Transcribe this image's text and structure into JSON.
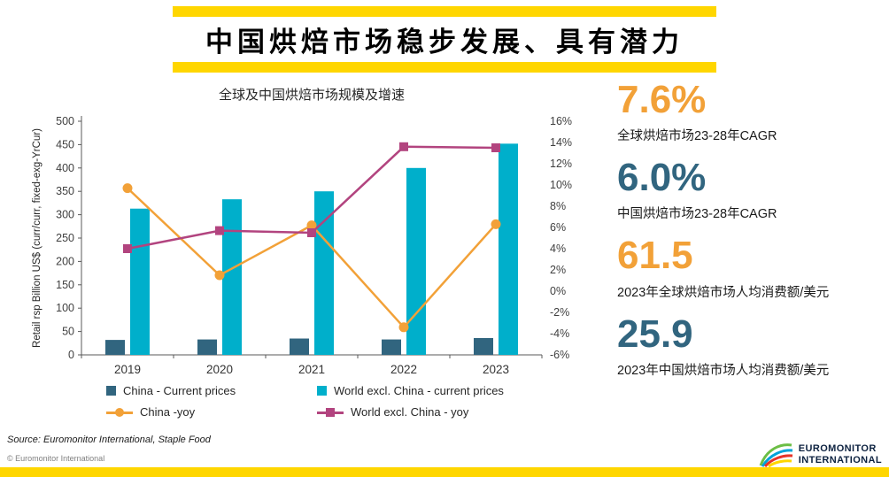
{
  "title": {
    "text": "中国烘焙市场稳步发展、具有潜力"
  },
  "colors": {
    "accent_yellow": "#FFD600",
    "china_bar": "#31657F",
    "world_bar": "#00AFCB",
    "china_yoy": "#F2A138",
    "world_yoy": "#B2447F",
    "logo_navy": "#0D2240"
  },
  "chart_data": {
    "type": "combo-bar-line",
    "title": "全球及中国烘焙市场规模及增速",
    "categories": [
      "2019",
      "2020",
      "2021",
      "2022",
      "2023"
    ],
    "left_axis": {
      "label": "Retail rsp Billion US$ (curr/curr, fixed-exg-YrCur)",
      "min": 0,
      "max": 500,
      "step": 50
    },
    "right_axis": {
      "min": -6,
      "max": 16,
      "step": 2,
      "unit": "%"
    },
    "grid": false,
    "legend_position": "bottom",
    "series": [
      {
        "name": "China - Current prices",
        "type": "bar",
        "axis": "left",
        "color": "#31657F",
        "values": [
          32,
          33,
          35,
          33,
          36
        ]
      },
      {
        "name": "World excl. China - current prices",
        "type": "bar",
        "axis": "left",
        "color": "#00AFCB",
        "values": [
          313,
          333,
          350,
          400,
          452
        ]
      },
      {
        "name": "China -yoy",
        "type": "line",
        "marker": "circle",
        "axis": "right",
        "color": "#F2A138",
        "values": [
          9.7,
          1.5,
          6.2,
          -3.4,
          6.3
        ]
      },
      {
        "name": "World excl. China - yoy",
        "type": "line",
        "marker": "square",
        "axis": "right",
        "color": "#B2447F",
        "values": [
          4.0,
          5.7,
          5.5,
          13.6,
          13.5
        ]
      }
    ]
  },
  "stats": [
    {
      "value": "7.6%",
      "label": "全球烘焙市场23-28年CAGR",
      "color": "#F2A138"
    },
    {
      "value": "6.0%",
      "label": "中国烘焙市场23-28年CAGR",
      "color": "#31657F"
    },
    {
      "value": "61.5",
      "label": "2023年全球烘焙市场人均消费额/美元",
      "color": "#F2A138"
    },
    {
      "value": "25.9",
      "label": "2023年中国烘焙市场人均消费额/美元",
      "color": "#31657F"
    }
  ],
  "footer": {
    "source": "Source: Euromonitor International, Staple Food",
    "copyright": "© Euromonitor International",
    "logo_line1": "EUROMONITOR",
    "logo_line2": "INTERNATIONAL"
  }
}
